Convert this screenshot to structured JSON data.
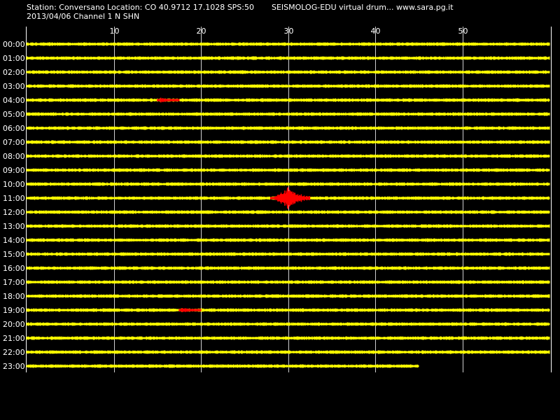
{
  "header": {
    "station_line": "Station: Conversano Location: CO 40.9712 17.1028 SPS:50",
    "brand_line": "SEISMOLOG-EDU virtual drum... www.sara.pg.it",
    "date_line": "2013/04/06  Channel 1 N SHN"
  },
  "colors": {
    "background": "#000000",
    "trace": "#ffff00",
    "event": "#ff0000",
    "grid": "#ffffff",
    "text": "#ffffff"
  },
  "drum": {
    "minute_ticks": [
      "10",
      "20",
      "30",
      "40",
      "50"
    ],
    "minute_values": [
      10,
      20,
      30,
      40,
      50
    ],
    "minutes_per_line": 60,
    "hour_labels": [
      "00:00",
      "01:00",
      "02:00",
      "03:00",
      "04:00",
      "05:00",
      "06:00",
      "07:00",
      "08:00",
      "09:00",
      "10:00",
      "11:00",
      "12:00",
      "13:00",
      "14:00",
      "15:00",
      "16:00",
      "17:00",
      "18:00",
      "19:00",
      "20:00",
      "21:00",
      "22:00",
      "23:00"
    ],
    "last_line_end_minute": 45,
    "events": [
      {
        "hour_index": 4,
        "start_minute": 15.0,
        "end_minute": 17.5,
        "strength": "small"
      },
      {
        "hour_index": 11,
        "start_minute": 28.0,
        "end_minute": 32.5,
        "strength": "large"
      },
      {
        "hour_index": 19,
        "start_minute": 17.5,
        "end_minute": 20.0,
        "strength": "small"
      }
    ]
  }
}
